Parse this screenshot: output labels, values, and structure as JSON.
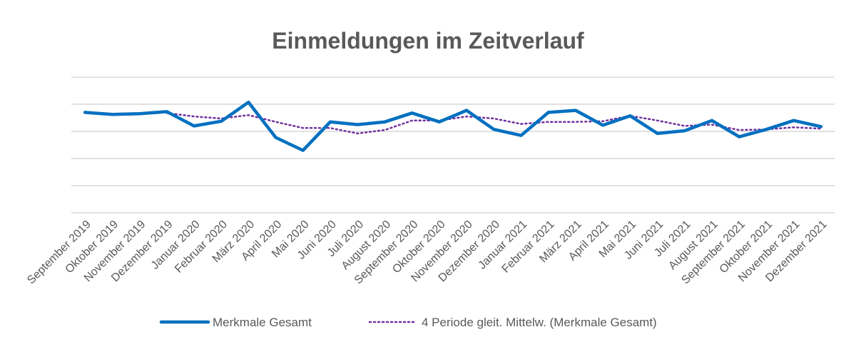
{
  "chart_data": {
    "type": "line",
    "title": "Einmeldungen im Zeitverlauf",
    "xlabel": "",
    "ylabel": "",
    "grid": true,
    "legend_position": "bottom",
    "ylim": [
      0,
      100
    ],
    "x": [
      "September 2019",
      "Oktober 2019",
      "November 2019",
      "Dezember 2019",
      "Januar 2020",
      "Februar 2020",
      "März 2020",
      "April 2020",
      "Mai 2020",
      "Juni 2020",
      "Juli 2020",
      "August 2020",
      "September 2020",
      "Oktober 2020",
      "November 2020",
      "Dezember 2020",
      "Januar 2021",
      "Februar 2021",
      "März 2021",
      "April 2021",
      "Mai 2021",
      "Juni 2021",
      "Juli 2021",
      "August 2021",
      "September 2021",
      "Oktober 2021",
      "November 2021",
      "Dezember 2021"
    ],
    "series": [
      {
        "name": "Merkmale Gesamt",
        "color": "#0070c0",
        "style": "solid",
        "values": [
          74,
          72.5,
          73,
          74.5,
          64,
          67.5,
          81.5,
          55.5,
          46,
          67,
          65,
          67,
          73.5,
          67,
          75.5,
          61.5,
          57,
          74,
          75.5,
          64.5,
          71.5,
          58.5,
          60.5,
          68,
          56,
          61.5,
          68,
          63.5
        ]
      },
      {
        "name": "4 Periode gleit. Mittelw. (Merkmale Gesamt)",
        "color": "#7030a0",
        "style": "dotted",
        "values": [
          null,
          null,
          null,
          73.5,
          71,
          69.5,
          72,
          67,
          62.5,
          62.5,
          58.5,
          61,
          68,
          68,
          71,
          69.5,
          65.5,
          67,
          67,
          67.5,
          71.5,
          68,
          64,
          65,
          61,
          61.5,
          63,
          62
        ]
      }
    ]
  }
}
